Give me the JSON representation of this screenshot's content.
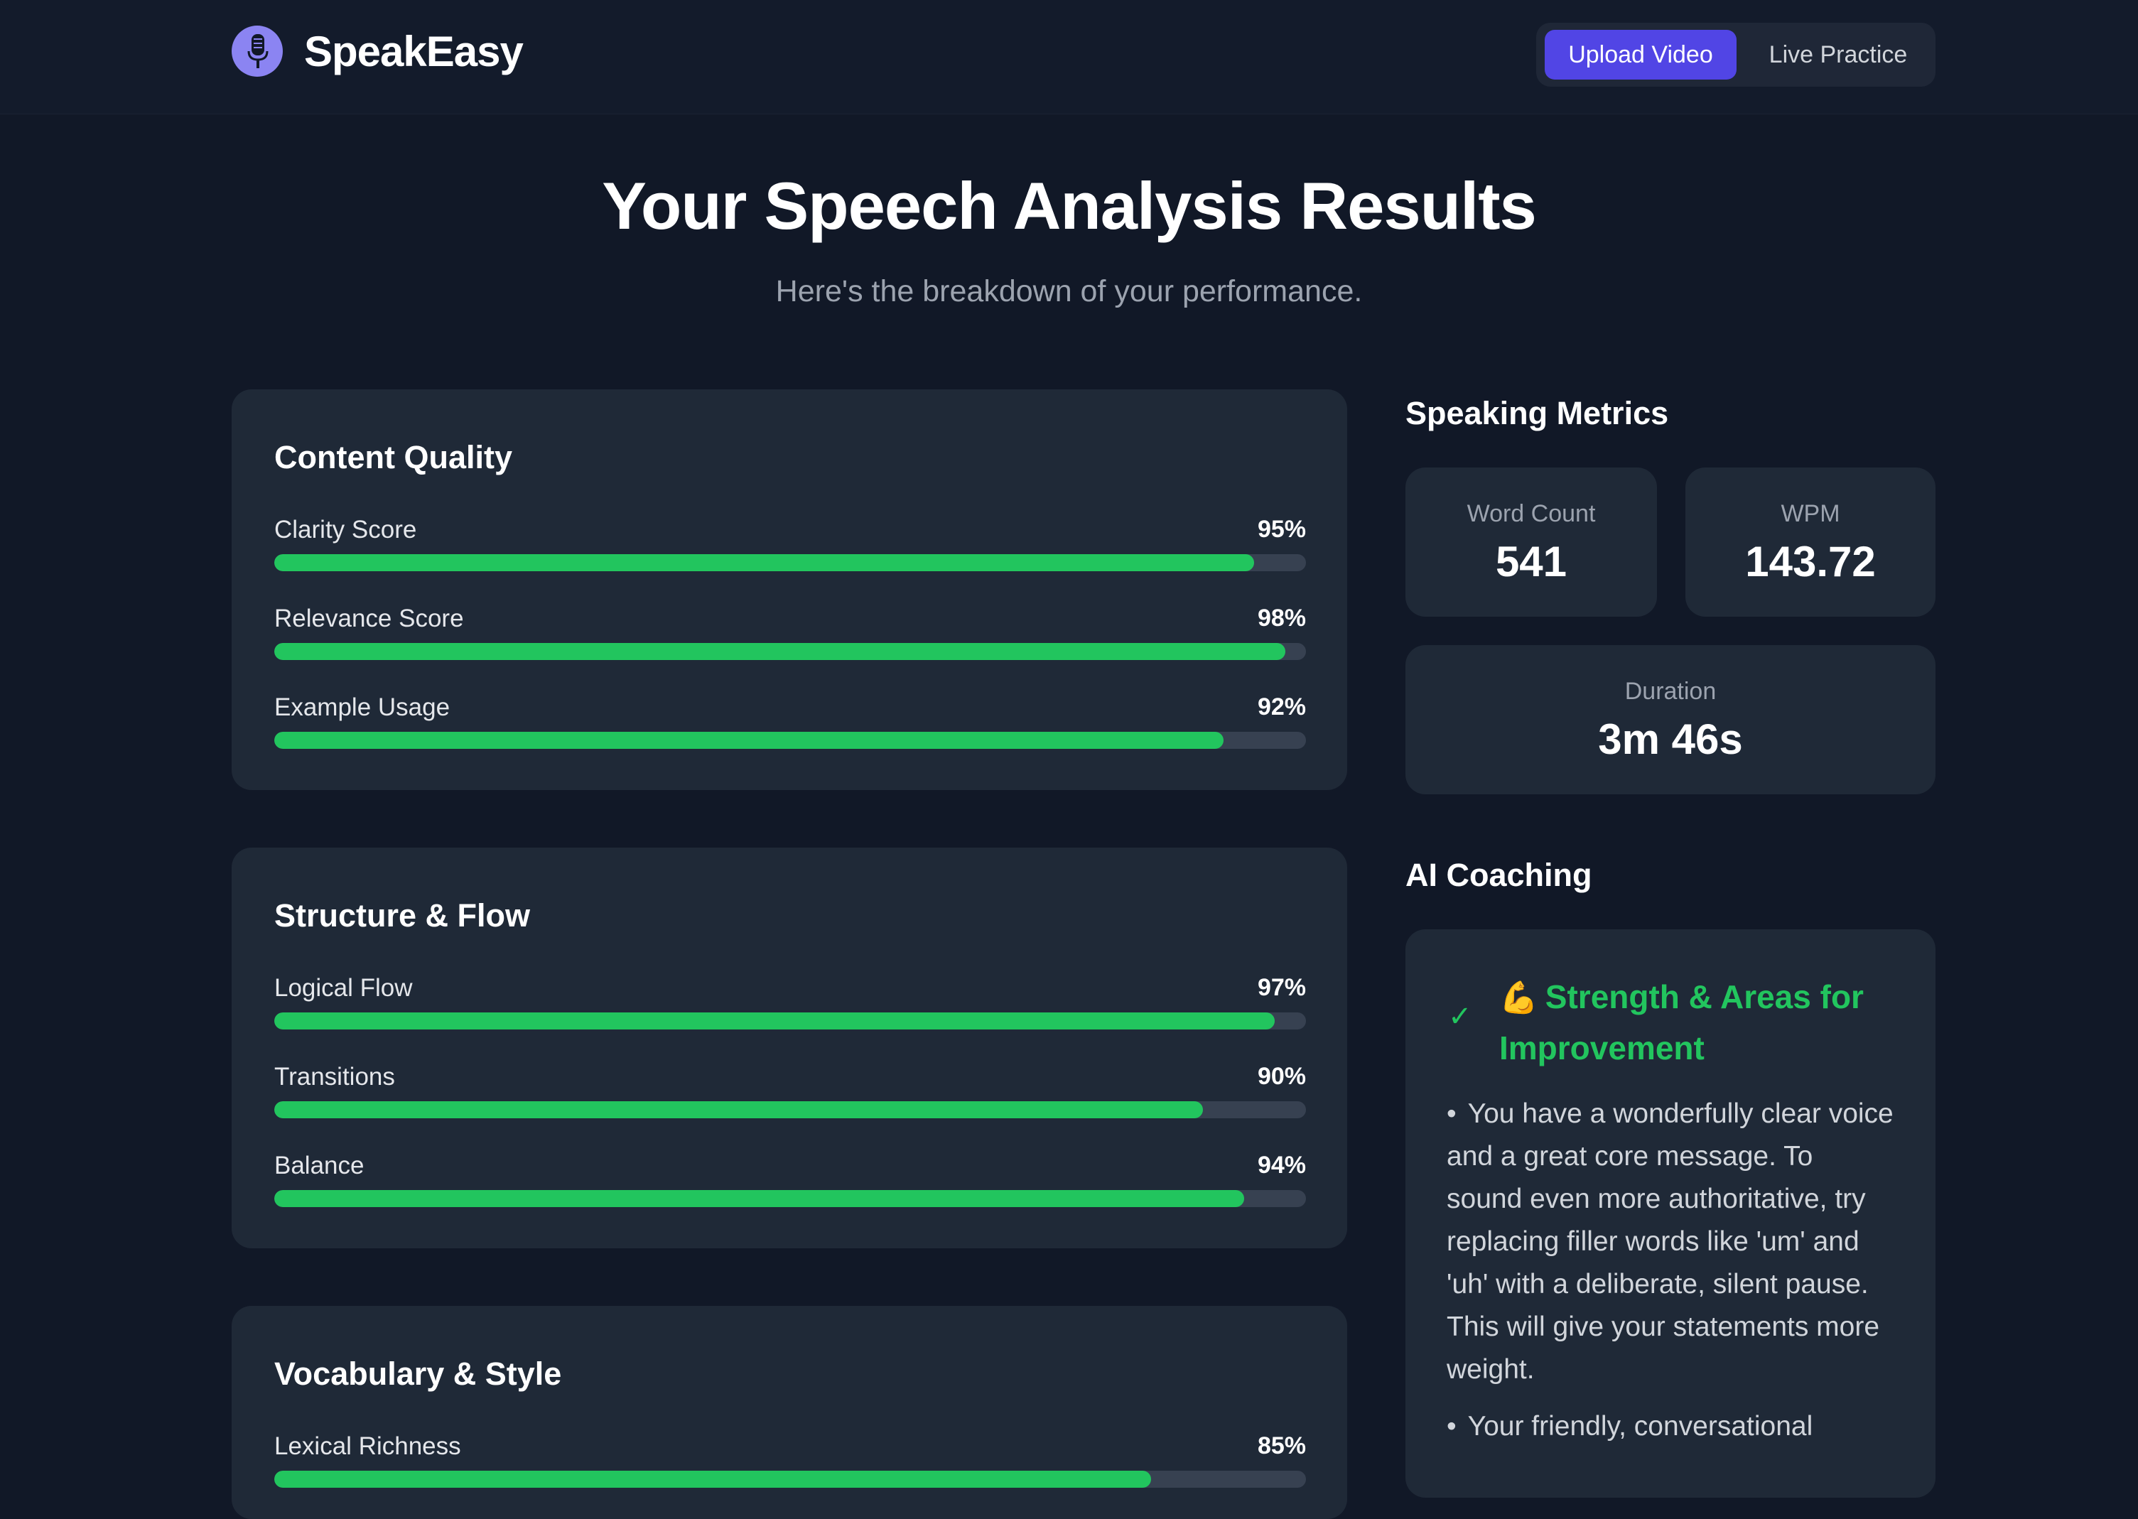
{
  "brand": {
    "name": "SpeakEasy",
    "logo_icon": "microphone-icon",
    "accent": "#5145e5"
  },
  "nav": {
    "upload_label": "Upload Video",
    "live_label": "Live Practice"
  },
  "page": {
    "title": "Your Speech Analysis Results",
    "subtitle": "Here's the breakdown of your performance."
  },
  "sections": [
    {
      "title": "Content Quality",
      "metrics": [
        {
          "label": "Clarity Score",
          "value": "95%",
          "percent": 95
        },
        {
          "label": "Relevance Score",
          "value": "98%",
          "percent": 98
        },
        {
          "label": "Example Usage",
          "value": "92%",
          "percent": 92
        }
      ]
    },
    {
      "title": "Structure & Flow",
      "metrics": [
        {
          "label": "Logical Flow",
          "value": "97%",
          "percent": 97
        },
        {
          "label": "Transitions",
          "value": "90%",
          "percent": 90
        },
        {
          "label": "Balance",
          "value": "94%",
          "percent": 94
        }
      ]
    },
    {
      "title": "Vocabulary & Style",
      "metrics": [
        {
          "label": "Lexical Richness",
          "value": "85%",
          "percent": 85
        }
      ]
    }
  ],
  "speaking_metrics": {
    "heading": "Speaking Metrics",
    "word_count": {
      "label": "Word Count",
      "value": "541"
    },
    "wpm": {
      "label": "WPM",
      "value": "143.72"
    },
    "duration": {
      "label": "Duration",
      "value": "3m 46s"
    }
  },
  "coaching": {
    "heading": "AI Coaching",
    "title_emoji": "💪",
    "title": "Strength & Areas for Improvement",
    "check_icon": "check-icon",
    "color": "#22c55e",
    "tips": [
      "You have a wonderfully clear voice and a great core message. To sound even more authoritative, try replacing filler words like 'um' and 'uh' with a deliberate, silent pause. This will give your statements more weight.",
      "Your friendly, conversational"
    ]
  },
  "colors": {
    "background": "#111827",
    "card": "#1f2937",
    "bar": "#22c55e",
    "track": "#374151"
  }
}
